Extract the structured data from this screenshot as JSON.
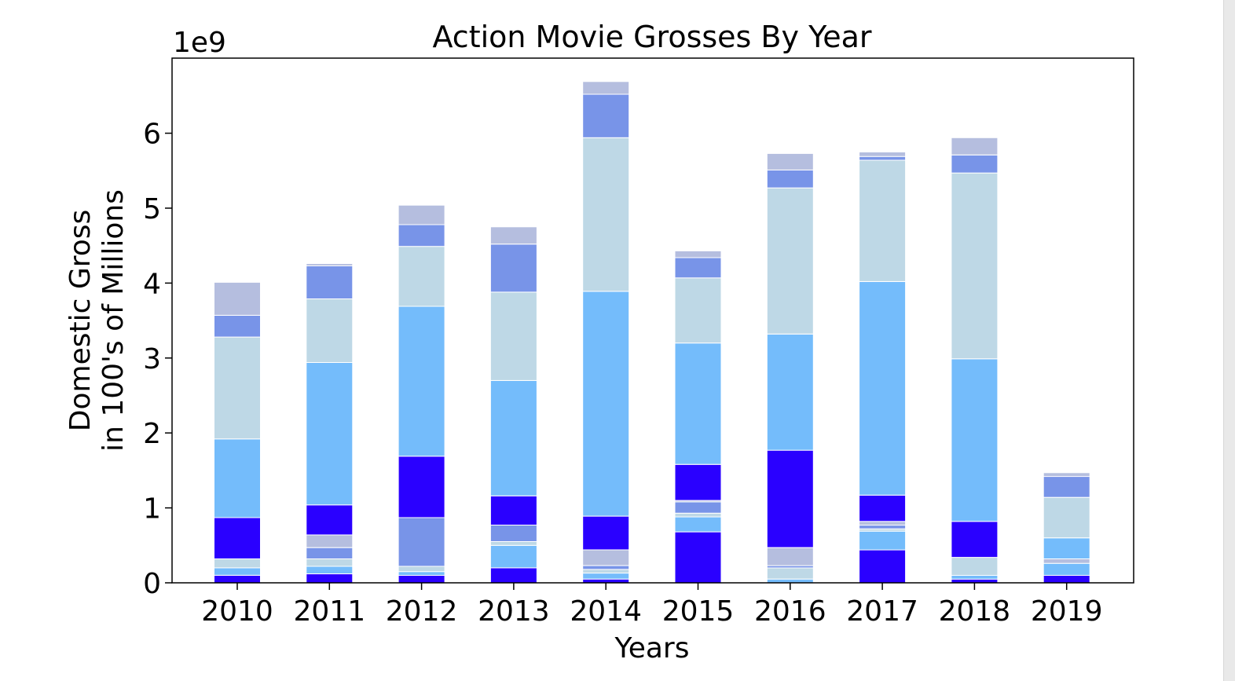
{
  "chart_data": {
    "type": "bar",
    "stacked": true,
    "title": "Action Movie Grosses By Year",
    "xlabel": "Years",
    "ylabel": [
      "Domestic Gross",
      "in 100's of Millions"
    ],
    "scale_label": "1e9",
    "categories": [
      "2010",
      "2011",
      "2012",
      "2013",
      "2014",
      "2015",
      "2016",
      "2017",
      "2018",
      "2019"
    ],
    "yticks": [
      0,
      1,
      2,
      3,
      4,
      5,
      6
    ],
    "ylim": [
      0,
      7.0
    ],
    "grid": false,
    "stacks": [
      [
        {
          "value": 0.1,
          "color": "#2a00ff"
        },
        {
          "value": 0.1,
          "color": "#74bcfb"
        },
        {
          "value": 0.12,
          "color": "#bed8e6"
        },
        {
          "value": 0.55,
          "color": "#2a00ff"
        },
        {
          "value": 1.05,
          "color": "#74bcfb"
        },
        {
          "value": 1.36,
          "color": "#bed8e6"
        },
        {
          "value": 0.29,
          "color": "#7894e8"
        },
        {
          "value": 0.44,
          "color": "#b5bedf"
        }
      ],
      [
        {
          "value": 0.12,
          "color": "#2a00ff"
        },
        {
          "value": 0.1,
          "color": "#74bcfb"
        },
        {
          "value": 0.1,
          "color": "#bed8e6"
        },
        {
          "value": 0.15,
          "color": "#7894e8"
        },
        {
          "value": 0.17,
          "color": "#b5bedf"
        },
        {
          "value": 0.4,
          "color": "#2a00ff"
        },
        {
          "value": 1.9,
          "color": "#74bcfb"
        },
        {
          "value": 0.85,
          "color": "#bed8e6"
        },
        {
          "value": 0.44,
          "color": "#7894e8"
        },
        {
          "value": 0.03,
          "color": "#b5bedf"
        }
      ],
      [
        {
          "value": 0.1,
          "color": "#2a00ff"
        },
        {
          "value": 0.05,
          "color": "#74bcfb"
        },
        {
          "value": 0.07,
          "color": "#bed8e6"
        },
        {
          "value": 0.65,
          "color": "#7894e8"
        },
        {
          "value": 0.82,
          "color": "#2a00ff"
        },
        {
          "value": 2.0,
          "color": "#74bcfb"
        },
        {
          "value": 0.8,
          "color": "#bed8e6"
        },
        {
          "value": 0.29,
          "color": "#7894e8"
        },
        {
          "value": 0.26,
          "color": "#b5bedf"
        }
      ],
      [
        {
          "value": 0.2,
          "color": "#2a00ff"
        },
        {
          "value": 0.3,
          "color": "#74bcfb"
        },
        {
          "value": 0.05,
          "color": "#bed8e6"
        },
        {
          "value": 0.22,
          "color": "#7894e8"
        },
        {
          "value": 0.39,
          "color": "#2a00ff"
        },
        {
          "value": 1.54,
          "color": "#74bcfb"
        },
        {
          "value": 1.18,
          "color": "#bed8e6"
        },
        {
          "value": 0.64,
          "color": "#7894e8"
        },
        {
          "value": 0.23,
          "color": "#b5bedf"
        }
      ],
      [
        {
          "value": 0.05,
          "color": "#2a00ff"
        },
        {
          "value": 0.08,
          "color": "#74bcfb"
        },
        {
          "value": 0.05,
          "color": "#bed8e6"
        },
        {
          "value": 0.05,
          "color": "#7894e8"
        },
        {
          "value": 0.21,
          "color": "#b5bedf"
        },
        {
          "value": 0.45,
          "color": "#2a00ff"
        },
        {
          "value": 3.0,
          "color": "#74bcfb"
        },
        {
          "value": 2.05,
          "color": "#bed8e6"
        },
        {
          "value": 0.58,
          "color": "#7894e8"
        },
        {
          "value": 0.17,
          "color": "#b5bedf"
        }
      ],
      [
        {
          "value": 0.68,
          "color": "#2a00ff"
        },
        {
          "value": 0.2,
          "color": "#74bcfb"
        },
        {
          "value": 0.05,
          "color": "#bed8e6"
        },
        {
          "value": 0.15,
          "color": "#7894e8"
        },
        {
          "value": 0.02,
          "color": "#b5bedf"
        },
        {
          "value": 0.48,
          "color": "#2a00ff"
        },
        {
          "value": 1.62,
          "color": "#74bcfb"
        },
        {
          "value": 0.87,
          "color": "#bed8e6"
        },
        {
          "value": 0.27,
          "color": "#7894e8"
        },
        {
          "value": 0.09,
          "color": "#b5bedf"
        }
      ],
      [
        {
          "value": 0.05,
          "color": "#74bcfb"
        },
        {
          "value": 0.15,
          "color": "#bed8e6"
        },
        {
          "value": 0.03,
          "color": "#7894e8"
        },
        {
          "value": 0.24,
          "color": "#b5bedf"
        },
        {
          "value": 1.3,
          "color": "#2a00ff"
        },
        {
          "value": 1.55,
          "color": "#74bcfb"
        },
        {
          "value": 1.95,
          "color": "#bed8e6"
        },
        {
          "value": 0.24,
          "color": "#7894e8"
        },
        {
          "value": 0.22,
          "color": "#b5bedf"
        }
      ],
      [
        {
          "value": 0.44,
          "color": "#2a00ff"
        },
        {
          "value": 0.25,
          "color": "#74bcfb"
        },
        {
          "value": 0.03,
          "color": "#bed8e6"
        },
        {
          "value": 0.05,
          "color": "#7894e8"
        },
        {
          "value": 0.05,
          "color": "#b5bedf"
        },
        {
          "value": 0.35,
          "color": "#2a00ff"
        },
        {
          "value": 2.85,
          "color": "#74bcfb"
        },
        {
          "value": 1.62,
          "color": "#bed8e6"
        },
        {
          "value": 0.05,
          "color": "#7894e8"
        },
        {
          "value": 0.06,
          "color": "#b5bedf"
        }
      ],
      [
        {
          "value": 0.05,
          "color": "#2a00ff"
        },
        {
          "value": 0.05,
          "color": "#74bcfb"
        },
        {
          "value": 0.24,
          "color": "#bed8e6"
        },
        {
          "value": 0.48,
          "color": "#2a00ff"
        },
        {
          "value": 2.17,
          "color": "#74bcfb"
        },
        {
          "value": 2.48,
          "color": "#bed8e6"
        },
        {
          "value": 0.24,
          "color": "#7894e8"
        },
        {
          "value": 0.23,
          "color": "#b5bedf"
        }
      ],
      [
        {
          "value": 0.1,
          "color": "#2a00ff"
        },
        {
          "value": 0.16,
          "color": "#74bcfb"
        },
        {
          "value": 0.06,
          "color": "#b5bedf"
        },
        {
          "value": 0.28,
          "color": "#74bcfb"
        },
        {
          "value": 0.54,
          "color": "#bed8e6"
        },
        {
          "value": 0.28,
          "color": "#7894e8"
        },
        {
          "value": 0.05,
          "color": "#b5bedf"
        }
      ]
    ]
  }
}
